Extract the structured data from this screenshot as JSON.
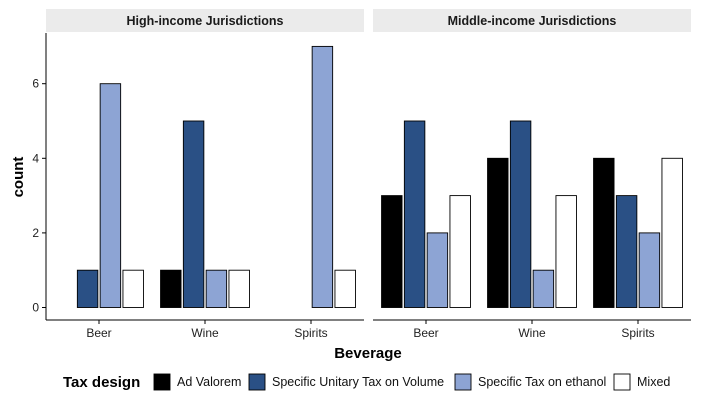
{
  "chart_data": {
    "type": "bar",
    "xlabel": "Beverage",
    "ylabel": "count",
    "ylim": [
      0,
      7.3
    ],
    "yticks": [
      0,
      2,
      4,
      6
    ],
    "legend": {
      "title": "Tax design",
      "placement": "bottom",
      "entries": [
        "Ad Valorem",
        "Specific Unitary Tax on Volume",
        "Specific Tax on ethanol",
        "Mixed"
      ],
      "colors": [
        "#000000",
        "#2a5085",
        "#8da4d4",
        "#ffffff"
      ]
    },
    "panels": [
      {
        "title": "High-income Jurisdictions",
        "categories": [
          "Beer",
          "Wine",
          "Spirits"
        ],
        "series": [
          {
            "name": "Ad Valorem",
            "values": [
              0,
              1,
              0
            ]
          },
          {
            "name": "Specific Unitary Tax on Volume",
            "values": [
              1,
              5,
              0
            ]
          },
          {
            "name": "Specific Tax on ethanol",
            "values": [
              6,
              1,
              7
            ]
          },
          {
            "name": "Mixed",
            "values": [
              1,
              1,
              1
            ]
          }
        ]
      },
      {
        "title": "Middle-income Jurisdictions",
        "categories": [
          "Beer",
          "Wine",
          "Spirits"
        ],
        "series": [
          {
            "name": "Ad Valorem",
            "values": [
              3,
              4,
              4
            ]
          },
          {
            "name": "Specific Unitary Tax on Volume",
            "values": [
              5,
              5,
              3
            ]
          },
          {
            "name": "Specific Tax on ethanol",
            "values": [
              2,
              1,
              2
            ]
          },
          {
            "name": "Mixed",
            "values": [
              3,
              3,
              4
            ]
          }
        ]
      }
    ]
  }
}
